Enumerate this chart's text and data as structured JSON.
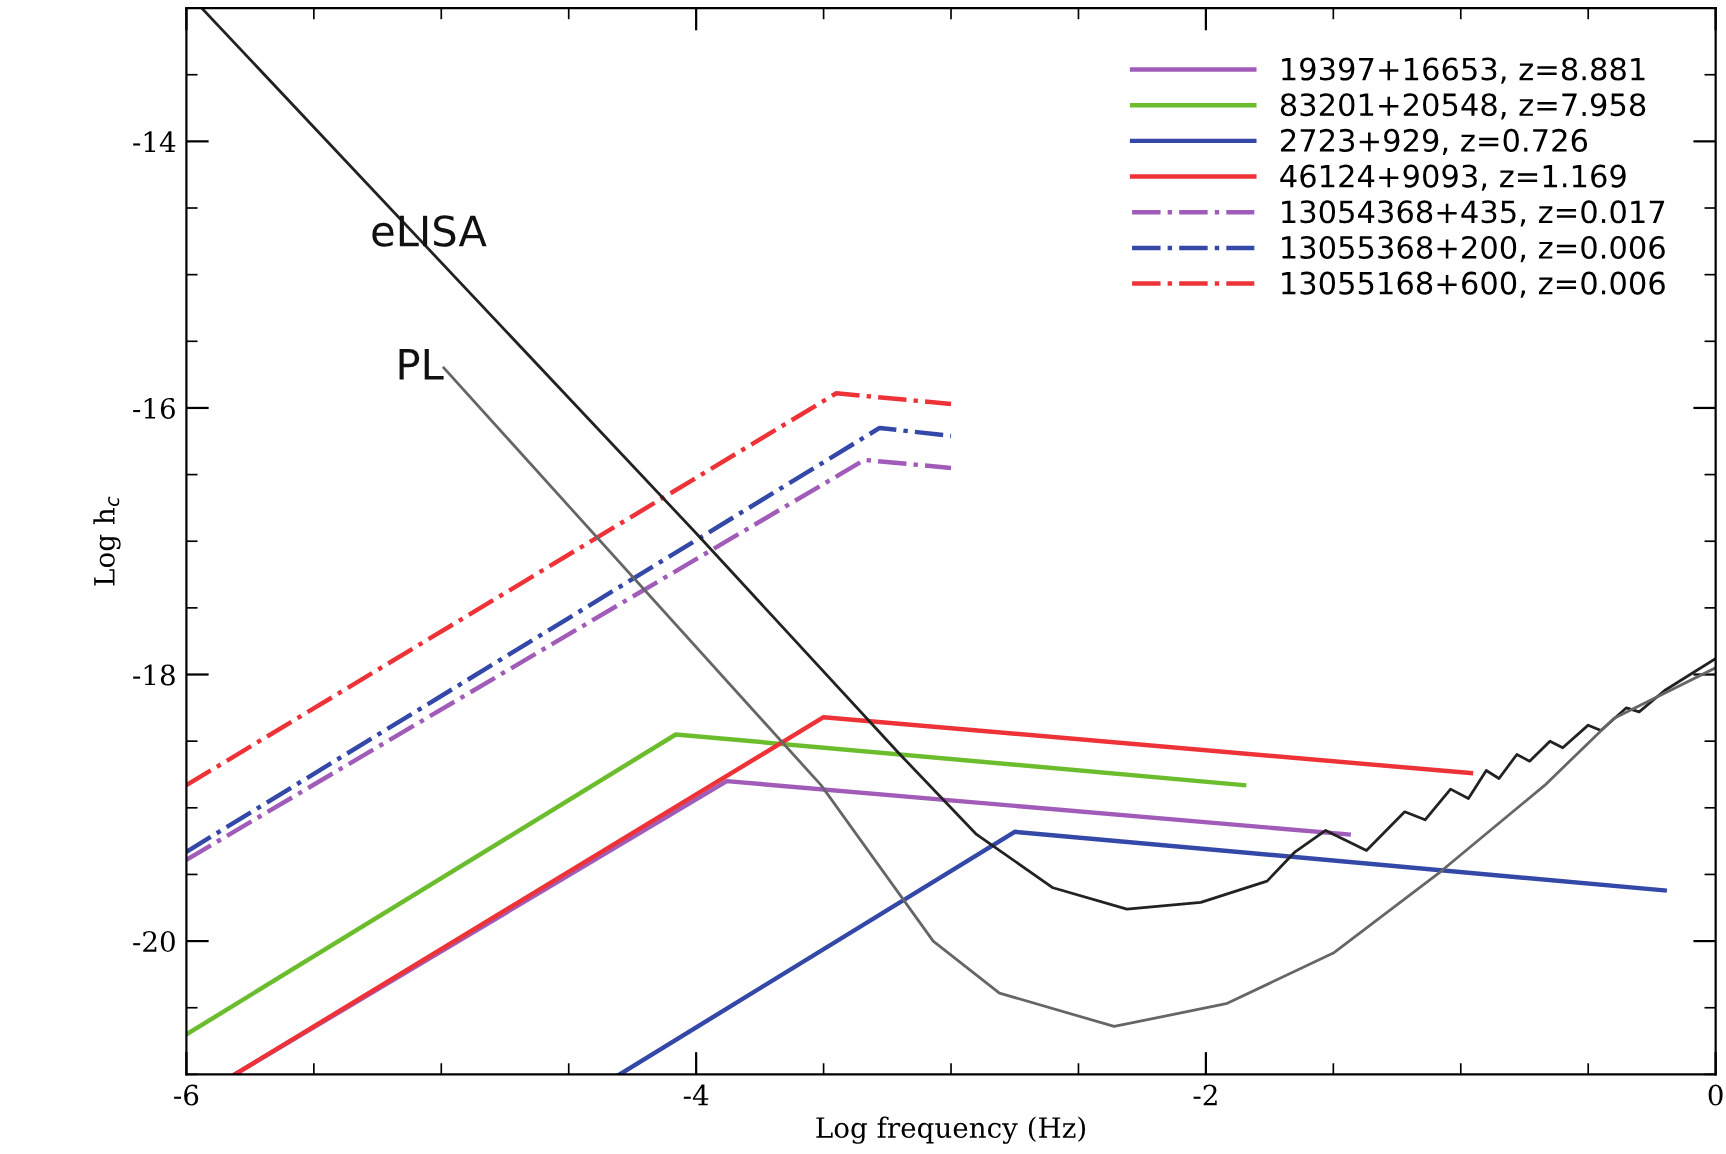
{
  "chart_data": {
    "type": "line",
    "xlabel": "Log frequency (Hz)",
    "ylabel": "Log h$_{c}$",
    "xlim": [
      -6,
      0
    ],
    "ylim": [
      -21,
      -13
    ],
    "xticks": [
      -6,
      -4,
      -2,
      0
    ],
    "yticks": [
      -20,
      -18,
      -16,
      -14
    ],
    "grid": false,
    "annotations": [
      {
        "text": "eLISA",
        "x": -5.05,
        "y": -14.7
      },
      {
        "text": "PL",
        "x": -4.99,
        "y": -15.7
      }
    ],
    "legend": "top right",
    "marker": "none",
    "series": [
      {
        "name": "19397+16653, z=8.881",
        "color": "#a05cb8",
        "line_style": "solid",
        "x": [
          -5.81,
          -3.88,
          -1.44
        ],
        "values": [
          -21.0,
          -18.8,
          -19.2
        ]
      },
      {
        "name": "83201+20548, z=7.958",
        "color": "#6cbd2e",
        "line_style": "solid",
        "x": [
          -6,
          -4.08,
          -1.85
        ],
        "values": [
          -20.7,
          -18.45,
          -18.83
        ]
      },
      {
        "name": "2723+929, z=0.726",
        "color": "#3448a8",
        "line_style": "solid",
        "x": [
          -4.3,
          -2.75,
          -0.2
        ],
        "values": [
          -21.0,
          -19.18,
          -19.62
        ]
      },
      {
        "name": "46124+9093, z=1.169",
        "color": "#ee3338",
        "line_style": "solid",
        "x": [
          -5.81,
          -3.5,
          -0.96
        ],
        "values": [
          -21.0,
          -18.32,
          -18.74
        ]
      },
      {
        "name": "13054368+435, z=0.017",
        "color": "#a05cb8",
        "line_style": "dashdot",
        "x": [
          -6,
          -3.34,
          -3.0
        ],
        "values": [
          -19.39,
          -16.39,
          -16.45
        ]
      },
      {
        "name": "13055368+200, z=0.006",
        "color": "#3448a8",
        "line_style": "dashdot",
        "x": [
          -6,
          -3.28,
          -3.0
        ],
        "values": [
          -19.33,
          -16.15,
          -16.21
        ]
      },
      {
        "name": "13055168+600, z=0.006",
        "color": "#ee3338",
        "line_style": "dashdot",
        "x": [
          -6,
          -3.45,
          -3.0
        ],
        "values": [
          -18.83,
          -15.89,
          -15.97
        ]
      },
      {
        "color": "#222222",
        "line_style": "solid",
        "x": [
          -5.94,
          -4.0,
          -3.2,
          -2.9,
          -2.6,
          -2.31,
          -2.02,
          -1.76,
          -1.65,
          -1.53,
          -1.37,
          -1.22,
          -1.14,
          -1.04,
          -0.97,
          -0.9,
          -0.85,
          -0.78,
          -0.73,
          -0.65,
          -0.6,
          -0.5,
          -0.45,
          -0.35,
          -0.3,
          -0.2,
          -0.1,
          0
        ],
        "values": [
          -13.0,
          -16.94,
          -18.6,
          -19.2,
          -19.6,
          -19.76,
          -19.71,
          -19.55,
          -19.33,
          -19.17,
          -19.32,
          -19.03,
          -19.09,
          -18.86,
          -18.93,
          -18.72,
          -18.78,
          -18.6,
          -18.65,
          -18.5,
          -18.55,
          -18.38,
          -18.42,
          -18.25,
          -18.28,
          -18.12,
          -18.0,
          -17.88
        ]
      },
      {
        "color": "#666666",
        "line_style": "solid",
        "x": [
          -4.99,
          -3.51,
          -3.07,
          -2.81,
          -2.36,
          -1.92,
          -1.5,
          -1.08,
          -0.67,
          -0.4,
          0
        ],
        "values": [
          -15.7,
          -18.83,
          -20.0,
          -20.39,
          -20.64,
          -20.47,
          -20.09,
          -19.48,
          -18.83,
          -18.33,
          -17.95
        ]
      }
    ]
  }
}
